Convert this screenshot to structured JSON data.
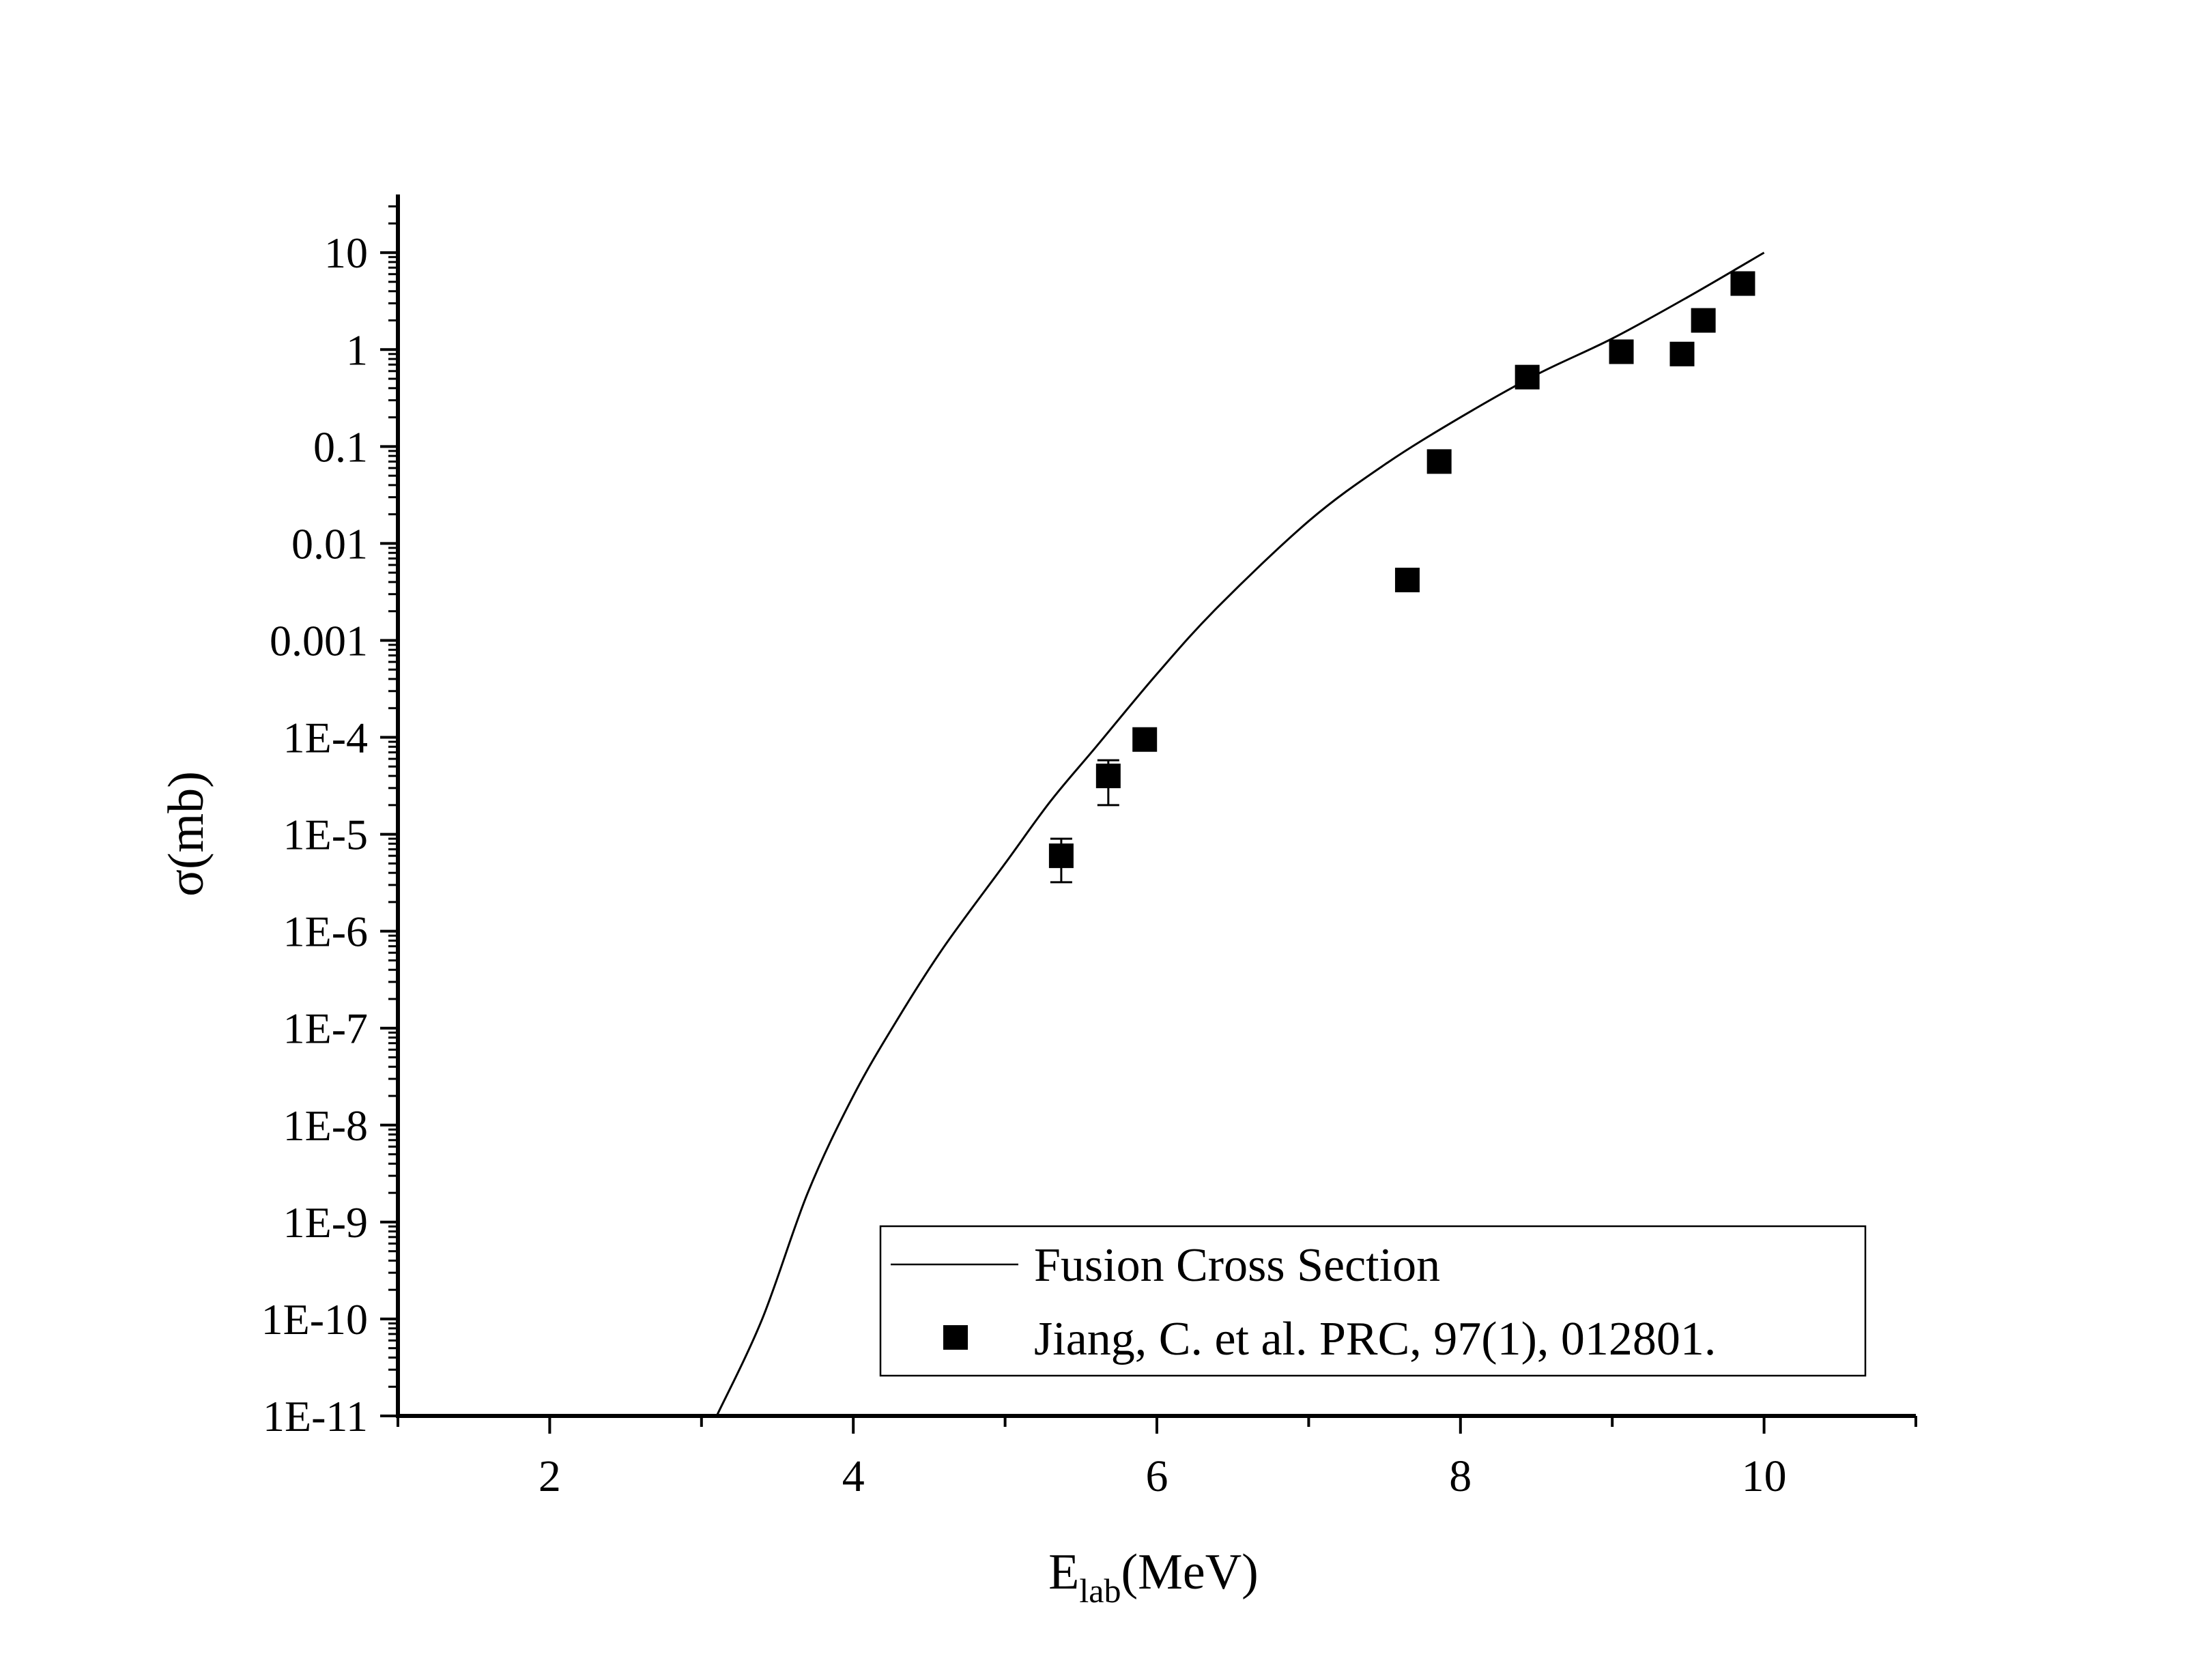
{
  "chart_data": {
    "type": "scatter",
    "title": "",
    "xlabel": {
      "main": "E",
      "sub": "lab",
      "rest": "(MeV)"
    },
    "ylabel": "σ(mb)",
    "xlim": [
      1,
      11
    ],
    "ylim_log10": [
      -11,
      1.6
    ],
    "y_scale": "log",
    "grid": false,
    "legend_position": "bottom-right",
    "x_ticks": [
      {
        "value": 2,
        "label": "2"
      },
      {
        "value": 4,
        "label": "4"
      },
      {
        "value": 6,
        "label": "6"
      },
      {
        "value": 8,
        "label": "8"
      },
      {
        "value": 10,
        "label": "10"
      }
    ],
    "y_ticks": [
      {
        "exp": 1,
        "label": "10"
      },
      {
        "exp": 0,
        "label": "1"
      },
      {
        "exp": -1,
        "label": "0.1"
      },
      {
        "exp": -2,
        "label": "0.01"
      },
      {
        "exp": -3,
        "label": "0.001"
      },
      {
        "exp": -4,
        "label": "1E-4"
      },
      {
        "exp": -5,
        "label": "1E-5"
      },
      {
        "exp": -6,
        "label": "1E-6"
      },
      {
        "exp": -7,
        "label": "1E-7"
      },
      {
        "exp": -8,
        "label": "1E-8"
      },
      {
        "exp": -9,
        "label": "1E-9"
      },
      {
        "exp": -10,
        "label": "1E-10"
      },
      {
        "exp": -11,
        "label": "1E-11"
      }
    ],
    "series": [
      {
        "name": "Fusion Cross Section",
        "kind": "line",
        "color": "#000000",
        "points": [
          {
            "x": 3.1,
            "y": 1e-11
          },
          {
            "x": 3.4,
            "y": 1e-10
          },
          {
            "x": 3.7,
            "y": 2e-09
          },
          {
            "x": 4.0,
            "y": 2e-08
          },
          {
            "x": 4.3,
            "y": 1.3e-07
          },
          {
            "x": 4.6,
            "y": 7e-07
          },
          {
            "x": 5.0,
            "y": 5e-06
          },
          {
            "x": 5.3,
            "y": 2.2e-05
          },
          {
            "x": 5.6,
            "y": 8e-05
          },
          {
            "x": 6.0,
            "y": 0.00045
          },
          {
            "x": 6.4,
            "y": 0.0022
          },
          {
            "x": 7.0,
            "y": 0.017
          },
          {
            "x": 7.5,
            "y": 0.065
          },
          {
            "x": 8.0,
            "y": 0.2
          },
          {
            "x": 8.5,
            "y": 0.55
          },
          {
            "x": 9.0,
            "y": 1.3
          },
          {
            "x": 9.5,
            "y": 3.5
          },
          {
            "x": 10.0,
            "y": 10
          }
        ]
      },
      {
        "name": "Jiang, C. et al. PRC, 97(1), 012801.",
        "kind": "scatter",
        "marker": "square",
        "color": "#000000",
        "points": [
          {
            "x": 5.37,
            "y": 6e-06,
            "ylow": 3.2e-06,
            "yhigh": 9e-06
          },
          {
            "x": 5.68,
            "y": 4e-05,
            "ylow": 2e-05,
            "yhigh": 5.8e-05
          },
          {
            "x": 5.92,
            "y": 9.5e-05
          },
          {
            "x": 7.65,
            "y": 0.0042
          },
          {
            "x": 7.86,
            "y": 0.07
          },
          {
            "x": 8.44,
            "y": 0.52
          },
          {
            "x": 9.06,
            "y": 0.95
          },
          {
            "x": 9.46,
            "y": 0.9
          },
          {
            "x": 9.6,
            "y": 2.0
          },
          {
            "x": 9.86,
            "y": 4.8
          }
        ]
      }
    ]
  }
}
